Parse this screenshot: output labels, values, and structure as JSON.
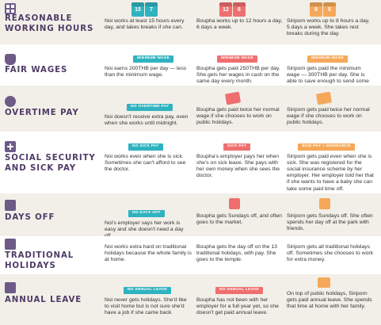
{
  "colors": {
    "band": "#f2efe8",
    "title": "#4f3b67",
    "noi": "#2fb3c0",
    "boupha": "#ef6f6f",
    "siriporn": "#f6a85a"
  },
  "rows": [
    {
      "id": "hours",
      "icon": "calendar-grid-icon",
      "title": "Reasonable Working Hours",
      "noi": {
        "badge": "",
        "text": "Noi works at least 15 hours every day, and takes breaks if she can.",
        "icon_text": "15  7"
      },
      "boupha": {
        "badge": "",
        "text": "Boupha works up to 12 hours a day, 6 days a week.",
        "icon_text": "12  6"
      },
      "siriporn": {
        "badge": "",
        "text": "Siriporn works up to 8 hours a day, 5 days a week. She takes rest breaks during the day.",
        "icon_text": "8  5"
      }
    },
    {
      "id": "wages",
      "icon": "money-bag-icon",
      "title": "Fair Wages",
      "noi": {
        "badge": "Minimum Wage",
        "text": "Noi earns 200THB per day — less than the minimum wage."
      },
      "boupha": {
        "badge": "Minimum Wage",
        "text": "Boupha gets paid 250THB per day. She gets her wages in cash on the same day every month."
      },
      "siriporn": {
        "badge": "Minimum Wage",
        "text": "Siriporn gets paid the minimum wage — 300THB per day. She is able to save enough to send some money home."
      }
    },
    {
      "id": "overtime",
      "icon": "clock-icon",
      "title": "Overtime Pay",
      "noi": {
        "badge": "No Overtime Pay",
        "text": "Noi doesn't receive extra pay, even when she works until midnight."
      },
      "boupha": {
        "badge": "",
        "text": "Boupha gets paid twice her normal wage if she chooses to work on public holidays."
      },
      "siriporn": {
        "badge": "",
        "text": "Siriporn gets paid twice her normal wage if she chooses to work on public holidays."
      }
    },
    {
      "id": "social",
      "icon": "first-aid-icon",
      "title": "Social Security and Sick Pay",
      "noi": {
        "badge": "No Sick Pay",
        "text": "Noi works even when she is sick. Sometimes she can't afford to see the doctor."
      },
      "boupha": {
        "badge": "Sick Pay",
        "text": "Boupha's employer pays her when she's on sick leave. She pays with her own money when she sees the doctor."
      },
      "siriporn": {
        "badge": "Sick Pay + Insurance",
        "text": "Siriporn gets paid even when she is sick. She was registered for the social insurance scheme by her employer. Her employer told her that if she wants to have a baby she can take some paid time off."
      }
    },
    {
      "id": "daysoff",
      "icon": "calendar-off-icon",
      "title": "Days Off",
      "noi": {
        "badge": "No Days Off",
        "text": "Noi's employer says her work is easy and she doesn't need a day off."
      },
      "boupha": {
        "badge": "",
        "text": "Boupha gets Sundays off, and often goes to the market."
      },
      "siriporn": {
        "badge": "",
        "text": "Siriporn gets Sundays off. She often spends her day off at the park with friends."
      }
    },
    {
      "id": "holidays",
      "icon": "flag-icon",
      "title": "Traditional Holidays",
      "noi": {
        "badge": "",
        "text": "Noi works extra hard on traditional holidays because the whole family is at home."
      },
      "boupha": {
        "badge": "",
        "text": "Boupha gets the day off on the 13 traditional holidays, with pay. She goes to the temple."
      },
      "siriporn": {
        "badge": "",
        "text": "Siriporn gets all traditional holidays off. Sometimes she chooses to work for extra money."
      }
    },
    {
      "id": "annual",
      "icon": "suitcase-icon",
      "title": "Annual Leave",
      "noi": {
        "badge": "No Annual Leave",
        "text": "Noi never gets holidays. She'd like to visit home but is not sure she'd have a job if she came back."
      },
      "boupha": {
        "badge": "No Annual Leave",
        "text": "Boupha has not been with her employer for a full year yet, so she doesn't get paid annual leave."
      },
      "siriporn": {
        "badge": "",
        "text": "On top of public holidays, Siriporn gets paid annual leave. She spends that time at home with her family."
      }
    }
  ]
}
